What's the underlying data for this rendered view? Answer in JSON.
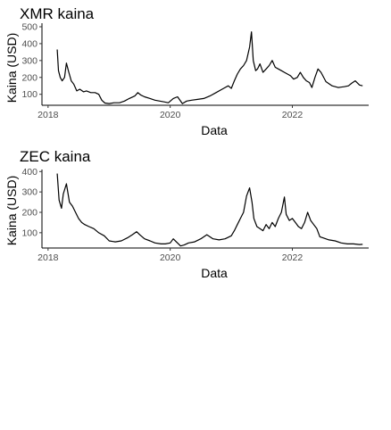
{
  "chart_data": [
    {
      "type": "line",
      "title": "XMR kaina",
      "xlabel": "Data",
      "ylabel": "Kaina (USD)",
      "x_ticks": [
        "2018",
        "2020",
        "2022"
      ],
      "y_ticks": [
        "100",
        "200",
        "300",
        "400",
        "500"
      ],
      "x_tick_values": [
        2018,
        2020,
        2022
      ],
      "y_tick_values": [
        100,
        200,
        300,
        400,
        500
      ],
      "xlim": [
        2017.9,
        2023.25
      ],
      "ylim": [
        35,
        500
      ],
      "grid": false,
      "series": [
        {
          "x": [
            2018.15,
            2018.17,
            2018.2,
            2018.23,
            2018.27,
            2018.3,
            2018.34,
            2018.38,
            2018.42,
            2018.47,
            2018.52,
            2018.58,
            2018.63,
            2018.7,
            2018.77,
            2018.83,
            2018.88,
            2018.93,
            2019.0,
            2019.08,
            2019.17,
            2019.25,
            2019.33,
            2019.42,
            2019.47,
            2019.52,
            2019.58,
            2019.67,
            2019.75,
            2019.83,
            2019.9,
            2019.97,
            2020.05,
            2020.12,
            2020.2,
            2020.27,
            2020.35,
            2020.45,
            2020.55,
            2020.65,
            2020.75,
            2020.85,
            2020.95,
            2021.0,
            2021.05,
            2021.1,
            2021.15,
            2021.2,
            2021.25,
            2021.3,
            2021.33,
            2021.36,
            2021.4,
            2021.43,
            2021.47,
            2021.52,
            2021.57,
            2021.62,
            2021.67,
            2021.72,
            2021.77,
            2021.82,
            2021.87,
            2021.92,
            2021.97,
            2022.02,
            2022.08,
            2022.13,
            2022.18,
            2022.23,
            2022.28,
            2022.32,
            2022.37,
            2022.42,
            2022.47,
            2022.55,
            2022.65,
            2022.75,
            2022.85,
            2022.92,
            2022.97,
            2023.03,
            2023.1,
            2023.15
          ],
          "y": [
            365,
            240,
            200,
            180,
            200,
            285,
            230,
            180,
            160,
            120,
            130,
            115,
            120,
            110,
            110,
            100,
            65,
            48,
            45,
            50,
            50,
            60,
            75,
            90,
            110,
            95,
            85,
            75,
            65,
            60,
            55,
            50,
            75,
            85,
            45,
            60,
            65,
            70,
            75,
            90,
            110,
            130,
            150,
            135,
            180,
            220,
            250,
            270,
            300,
            380,
            470,
            300,
            240,
            250,
            280,
            230,
            250,
            270,
            300,
            260,
            250,
            240,
            230,
            220,
            210,
            190,
            200,
            230,
            200,
            180,
            170,
            140,
            200,
            250,
            230,
            175,
            150,
            140,
            145,
            150,
            165,
            180,
            155,
            150
          ]
        }
      ]
    },
    {
      "type": "line",
      "title": "ZEC kaina",
      "xlabel": "Data",
      "ylabel": "Kaina (USD)",
      "x_ticks": [
        "2018",
        "2020",
        "2022"
      ],
      "y_ticks": [
        "100",
        "200",
        "300",
        "400"
      ],
      "x_tick_values": [
        2018,
        2020,
        2022
      ],
      "y_tick_values": [
        100,
        200,
        300,
        400
      ],
      "xlim": [
        2017.9,
        2023.25
      ],
      "ylim": [
        25,
        410
      ],
      "grid": false,
      "series": [
        {
          "x": [
            2018.15,
            2018.18,
            2018.22,
            2018.25,
            2018.3,
            2018.35,
            2018.4,
            2018.45,
            2018.5,
            2018.55,
            2018.6,
            2018.67,
            2018.75,
            2018.83,
            2018.92,
            2019.0,
            2019.1,
            2019.2,
            2019.3,
            2019.38,
            2019.45,
            2019.5,
            2019.58,
            2019.67,
            2019.75,
            2019.85,
            2019.92,
            2020.0,
            2020.05,
            2020.1,
            2020.17,
            2020.23,
            2020.3,
            2020.4,
            2020.5,
            2020.6,
            2020.65,
            2020.7,
            2020.8,
            2020.9,
            2021.0,
            2021.05,
            2021.1,
            2021.15,
            2021.2,
            2021.25,
            2021.3,
            2021.34,
            2021.37,
            2021.42,
            2021.47,
            2021.52,
            2021.57,
            2021.62,
            2021.67,
            2021.72,
            2021.77,
            2021.82,
            2021.87,
            2021.9,
            2021.95,
            2022.0,
            2022.05,
            2022.1,
            2022.15,
            2022.2,
            2022.25,
            2022.3,
            2022.35,
            2022.4,
            2022.45,
            2022.5,
            2022.6,
            2022.7,
            2022.8,
            2022.9,
            2023.0,
            2023.1,
            2023.15
          ],
          "y": [
            390,
            260,
            220,
            290,
            340,
            250,
            230,
            200,
            170,
            150,
            140,
            130,
            120,
            100,
            85,
            60,
            55,
            60,
            75,
            90,
            105,
            90,
            70,
            60,
            50,
            45,
            45,
            50,
            70,
            55,
            35,
            40,
            50,
            55,
            70,
            90,
            80,
            70,
            65,
            70,
            85,
            110,
            140,
            170,
            200,
            280,
            320,
            250,
            170,
            130,
            120,
            110,
            140,
            120,
            150,
            130,
            170,
            200,
            275,
            190,
            160,
            170,
            150,
            130,
            120,
            150,
            200,
            160,
            140,
            120,
            80,
            75,
            65,
            60,
            50,
            45,
            45,
            42,
            43
          ]
        }
      ]
    }
  ]
}
